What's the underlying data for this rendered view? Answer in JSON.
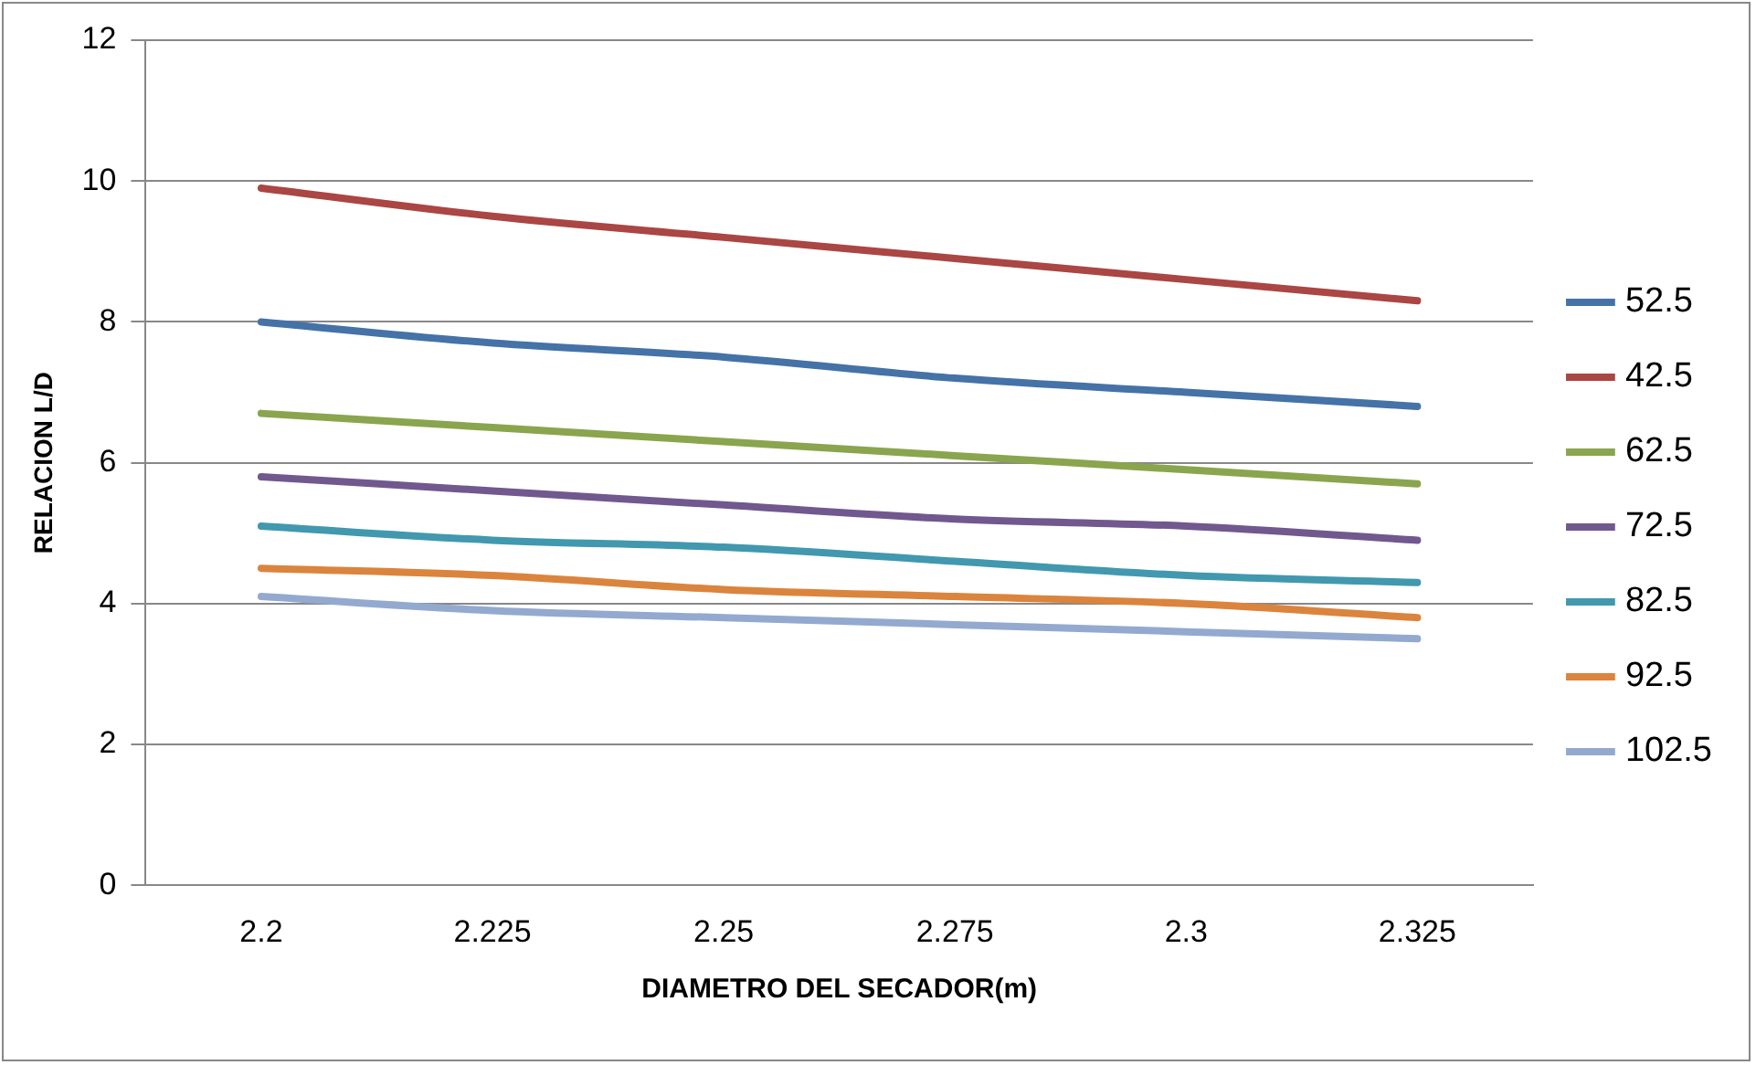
{
  "chart_data": {
    "type": "line",
    "xlabel": "DIAMETRO DEL SECADOR(m)",
    "ylabel": "RELACION L/D",
    "categories": [
      "2.2",
      "2.225",
      "2.25",
      "2.275",
      "2.3",
      "2.325"
    ],
    "series": [
      {
        "name": "52.5",
        "color": "#4572a7",
        "values": [
          8.0,
          7.7,
          7.5,
          7.2,
          7.0,
          6.8
        ]
      },
      {
        "name": "42.5",
        "color": "#aa4643",
        "values": [
          9.9,
          9.5,
          9.2,
          8.9,
          8.6,
          8.3
        ]
      },
      {
        "name": "62.5",
        "color": "#89a54e",
        "values": [
          6.7,
          6.5,
          6.3,
          6.1,
          5.9,
          5.7
        ]
      },
      {
        "name": "72.5",
        "color": "#71588f",
        "values": [
          5.8,
          5.6,
          5.4,
          5.2,
          5.1,
          4.9
        ]
      },
      {
        "name": "82.5",
        "color": "#4198af",
        "values": [
          5.1,
          4.9,
          4.8,
          4.6,
          4.4,
          4.3
        ]
      },
      {
        "name": "92.5",
        "color": "#db843d",
        "values": [
          4.5,
          4.4,
          4.2,
          4.1,
          4.0,
          3.8
        ]
      },
      {
        "name": "102.5",
        "color": "#93a9cf",
        "values": [
          4.1,
          3.9,
          3.8,
          3.7,
          3.6,
          3.5
        ]
      }
    ],
    "ylim": [
      0,
      12
    ],
    "yticks": [
      0,
      2,
      4,
      6,
      8,
      10,
      12
    ],
    "grid": "y",
    "legend": "right",
    "marker": "none",
    "line_style": "solid"
  }
}
